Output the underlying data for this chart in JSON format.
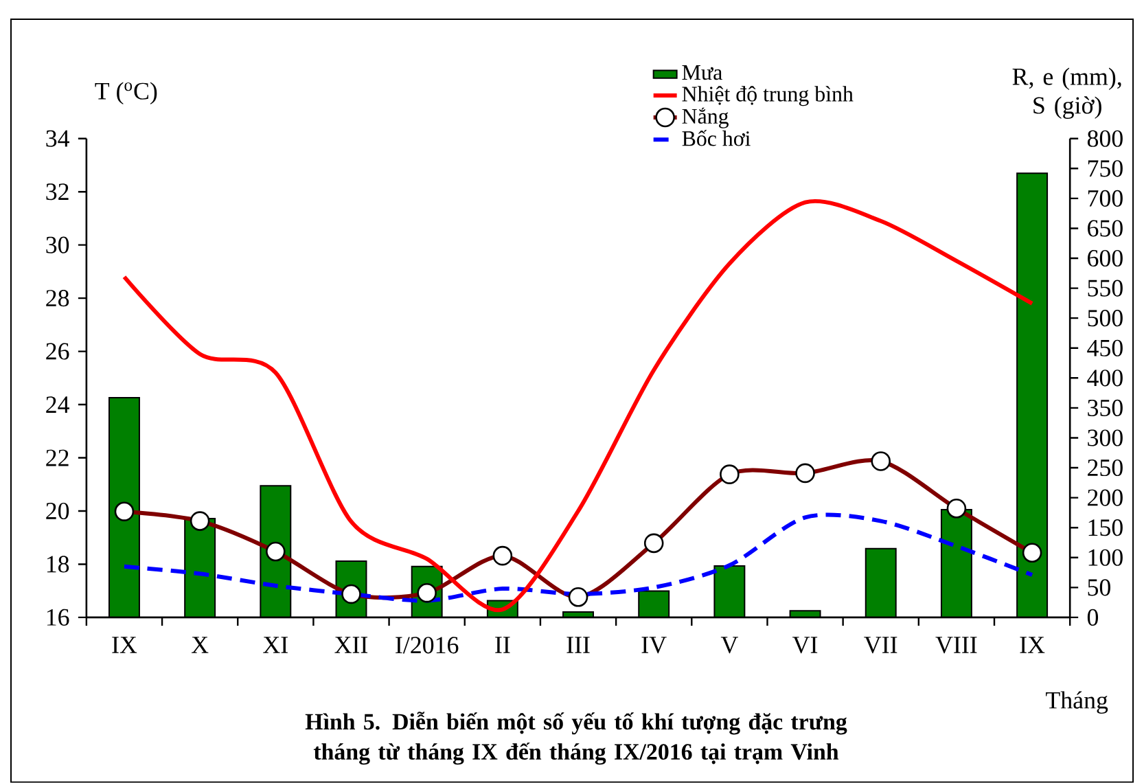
{
  "chart_data": {
    "type": "bar",
    "title": "Hình 5. Diễn biến một số yếu tố khí tượng đặc trưng tháng từ tháng IX đến tháng IX/2016 tại trạm Vinh",
    "xlabel": "Tháng",
    "ylabel": "T ($^{o}$C)",
    "y2label": "R, e (mm), S (giờ)",
    "categories": [
      "IX",
      "X",
      "XI",
      "XII",
      "I/2016",
      "II",
      "III",
      "IV",
      "V",
      "VI",
      "VII",
      "VIII",
      "IX"
    ],
    "series": [
      {
        "name": "Mưa",
        "axis": "y2",
        "color": "#008000",
        "values": [
          367,
          165,
          220,
          94,
          85,
          28,
          9,
          44,
          86,
          11,
          115,
          180,
          742
        ]
      },
      {
        "name": "Nhiệt độ trung bình",
        "type": "line",
        "axis": "y",
        "color": "#ff0000",
        "marker": "none",
        "line_style": "solid",
        "values": [
          28.8,
          25.9,
          25.2,
          19.6,
          18.2,
          16.3,
          20.0,
          25.3,
          29.3,
          31.6,
          30.9,
          29.4,
          27.8
        ]
      },
      {
        "name": "Nắng",
        "type": "line",
        "axis": "y2",
        "color": "#800000",
        "marker": "circle",
        "line_style": "solid",
        "values": [
          177,
          161,
          110,
          39,
          41,
          103,
          34,
          124,
          239,
          241,
          261,
          182,
          108
        ]
      },
      {
        "name": "Bốc hơi",
        "type": "line",
        "axis": "y2",
        "color": "#0000ff",
        "marker": "none",
        "line_style": "dashed",
        "values": [
          85,
          73,
          53,
          39,
          28,
          48,
          39,
          50,
          87,
          167,
          161,
          119,
          71
        ]
      }
    ],
    "ylim": [
      16,
      34
    ],
    "yticks": [
      16,
      18,
      20,
      22,
      24,
      26,
      28,
      30,
      32,
      34
    ],
    "y2lim": [
      0,
      800
    ],
    "y2ticks": [
      0,
      50,
      100,
      150,
      200,
      250,
      300,
      350,
      400,
      450,
      500,
      550,
      600,
      650,
      700,
      750,
      800
    ],
    "legend": "top",
    "grid": false
  }
}
